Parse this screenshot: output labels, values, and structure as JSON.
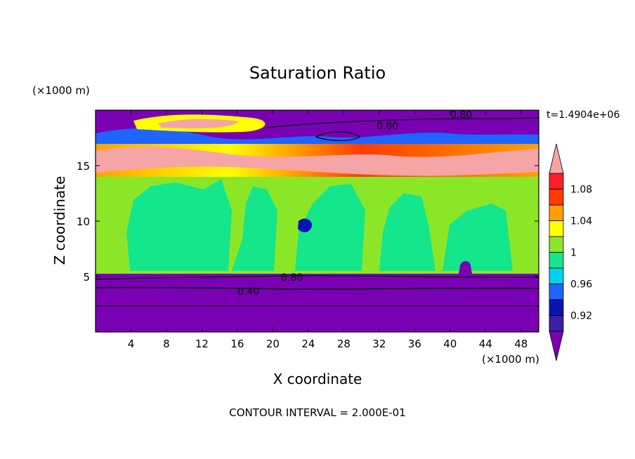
{
  "chart_data": {
    "type": "heatmap",
    "title": "Saturation Ratio",
    "timestamp": "t=1.4904e+06",
    "xlabel": "X coordinate",
    "ylabel": "Z coordinate",
    "x_unit": "(×1000 m)",
    "y_unit": "(×1000 m)",
    "xlim": [
      0,
      50
    ],
    "ylim": [
      0,
      20
    ],
    "x_ticks": [
      "4",
      "8",
      "12",
      "16",
      "20",
      "24",
      "28",
      "32",
      "36",
      "40",
      "44",
      "48"
    ],
    "y_ticks": [
      "5",
      "10",
      "15"
    ],
    "colorbar": {
      "labels": [
        "0.92",
        "0.96",
        "1",
        "1.04",
        "1.08"
      ],
      "levels": [
        0.9,
        0.92,
        0.94,
        0.96,
        0.98,
        1.0,
        1.02,
        1.04,
        1.06,
        1.08,
        1.1
      ],
      "colors": [
        "#7a00b4",
        "#3c1eaa",
        "#0a14b4",
        "#1e64ff",
        "#00d2f0",
        "#14e68c",
        "#8ce628",
        "#ffff00",
        "#ffa000",
        "#ff3c00",
        "#ff1e28",
        "#f5a5a5"
      ]
    },
    "contour_labels": [
      "0.80",
      "0.80",
      "0.80",
      "0.40"
    ],
    "footer": "CONTOUR INTERVAL = 2.000E-01",
    "regions": [
      {
        "z_range": [
          0,
          5
        ],
        "value_range": [
          0.2,
          0.9
        ],
        "description_value": "below 0.9"
      },
      {
        "z_range": [
          5,
          13.5
        ],
        "value_range": [
          0.98,
          1.02
        ]
      },
      {
        "z_range": [
          13.5,
          17.5
        ],
        "value_range": [
          1.02,
          1.12
        ]
      },
      {
        "z_range": [
          17.5,
          20
        ],
        "value_range": [
          0.6,
          1.1
        ]
      }
    ]
  }
}
